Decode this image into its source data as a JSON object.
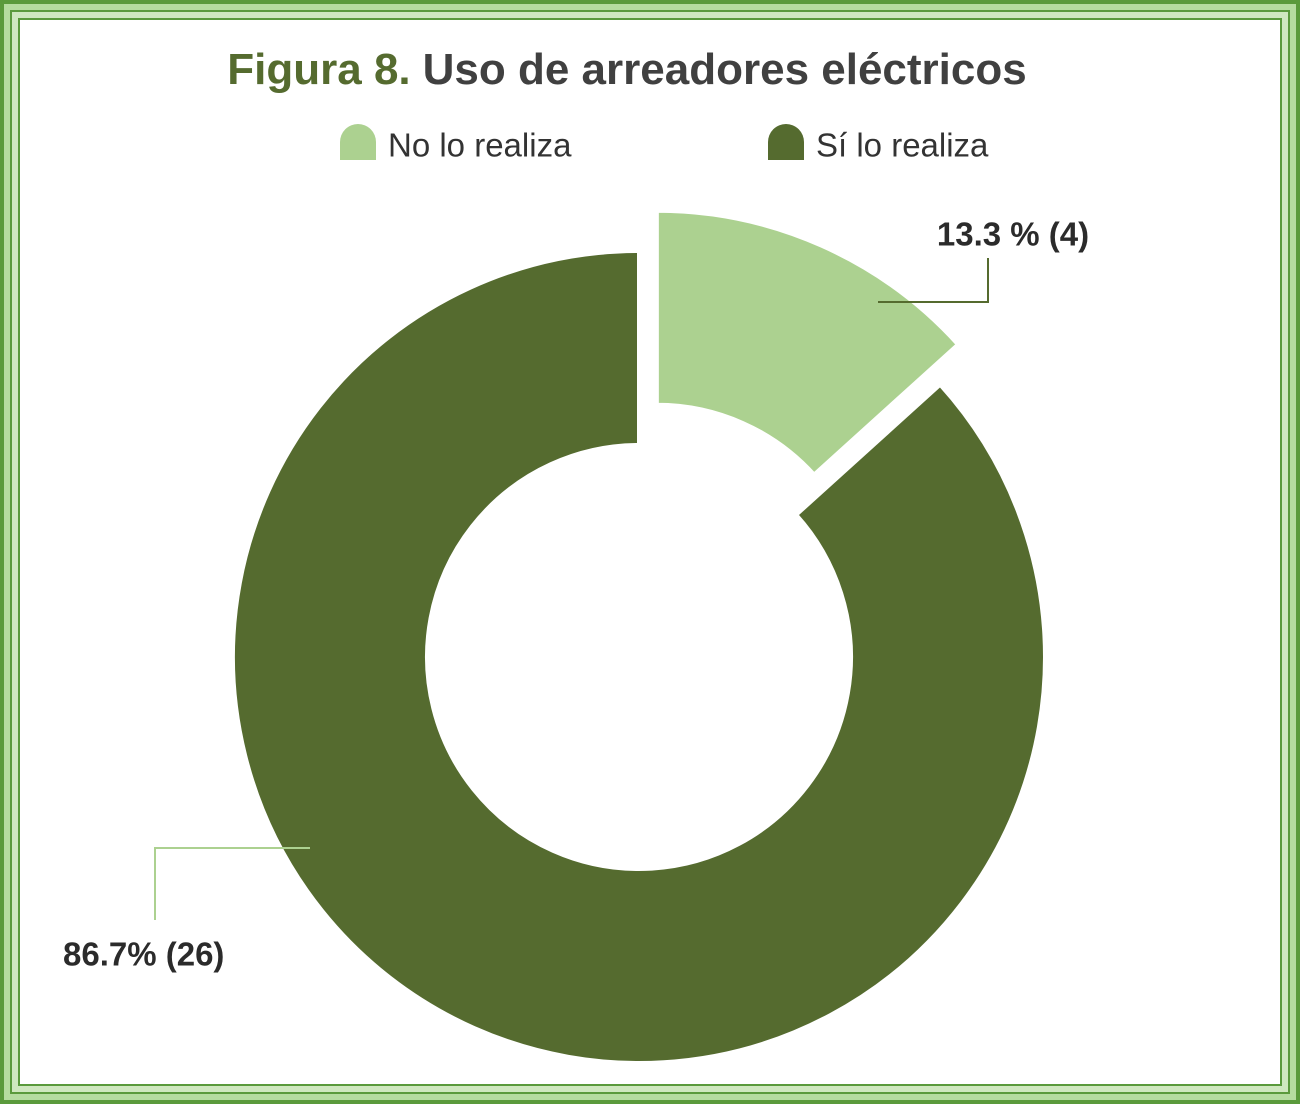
{
  "chart_data": {
    "type": "pie",
    "figure_label": "Figura 8.",
    "title": "Uso de arreadores eléctricos",
    "categories": [
      "No lo realiza",
      "Sí lo realiza"
    ],
    "values": [
      13.3,
      86.7
    ],
    "value_labels": [
      "13.3 % (4)",
      "86.7% (26)"
    ],
    "colors": [
      "#acd190",
      "#556b2f"
    ]
  }
}
